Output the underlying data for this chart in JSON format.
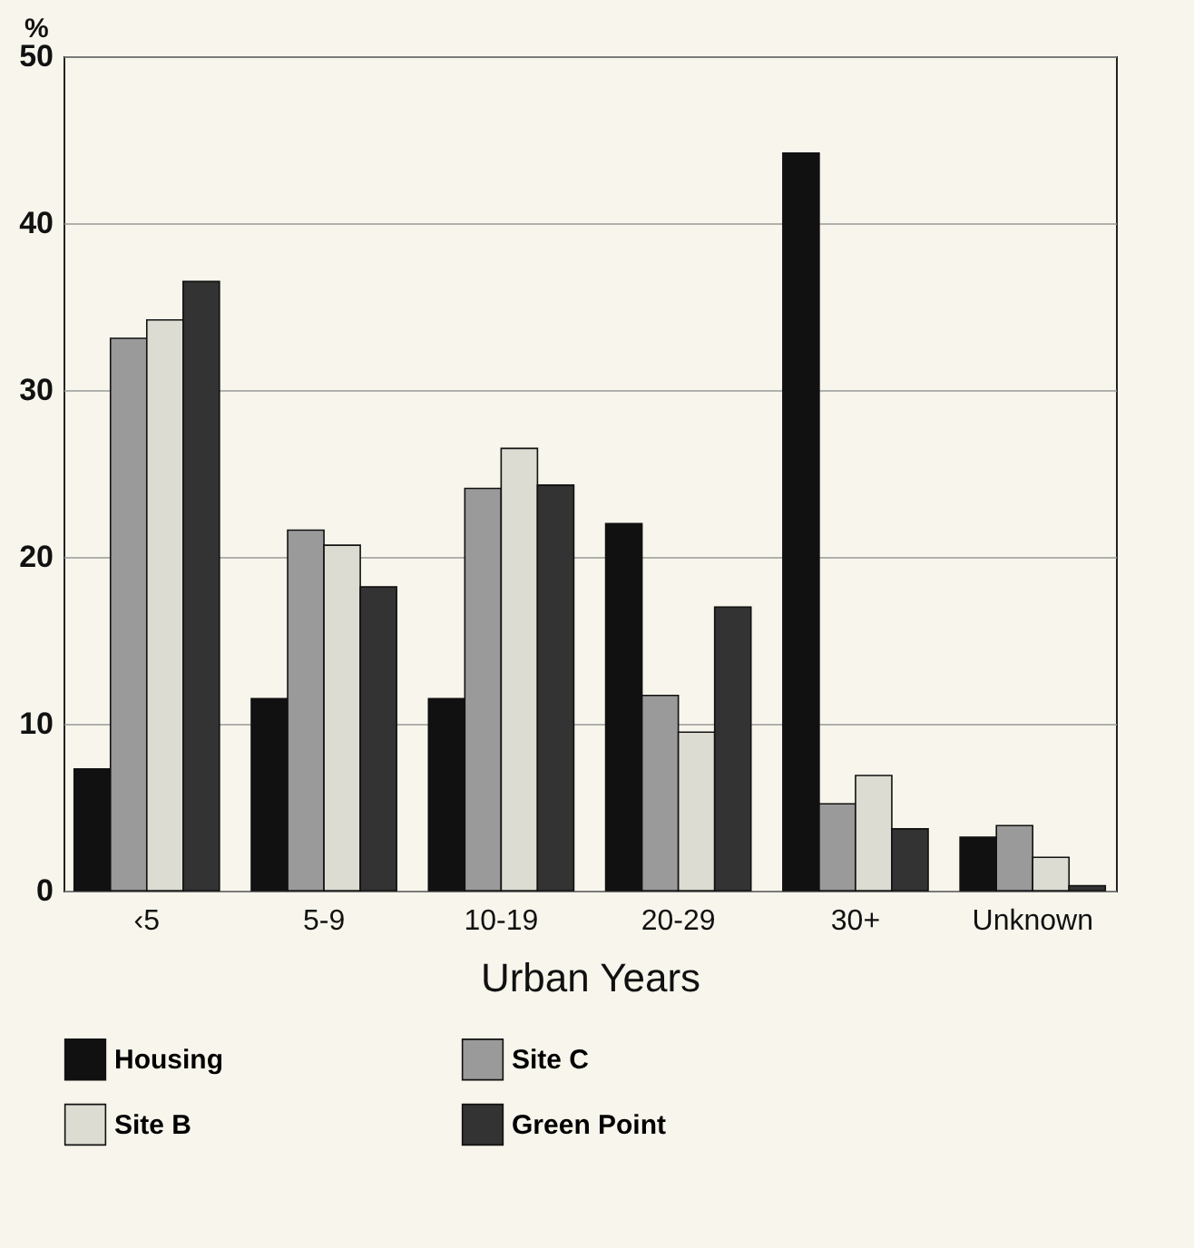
{
  "chart_data": {
    "type": "bar",
    "xlabel": "Urban Years",
    "ylabel": "%",
    "categories": [
      "‹5",
      "5-9",
      "10-19",
      "20-29",
      "30+",
      "Unknown"
    ],
    "series": [
      {
        "name": "Housing",
        "color": "#111111",
        "values": [
          7.3,
          11.5,
          11.5,
          22.0,
          44.2,
          3.2
        ]
      },
      {
        "name": "Site C",
        "color": "#9a9a9a",
        "values": [
          33.1,
          21.6,
          24.1,
          11.7,
          5.2,
          3.9
        ]
      },
      {
        "name": "Site B",
        "color": "#dddcd2",
        "values": [
          34.2,
          20.7,
          26.5,
          9.5,
          6.9,
          2.0
        ]
      },
      {
        "name": "Green Point",
        "color": "#333333",
        "values": [
          36.5,
          18.2,
          24.3,
          17.0,
          3.7,
          0.3
        ]
      }
    ],
    "ylim": [
      0,
      50
    ],
    "yticks": [
      0,
      10,
      20,
      30,
      40,
      50
    ],
    "grid": "y",
    "legend": "bottom"
  }
}
